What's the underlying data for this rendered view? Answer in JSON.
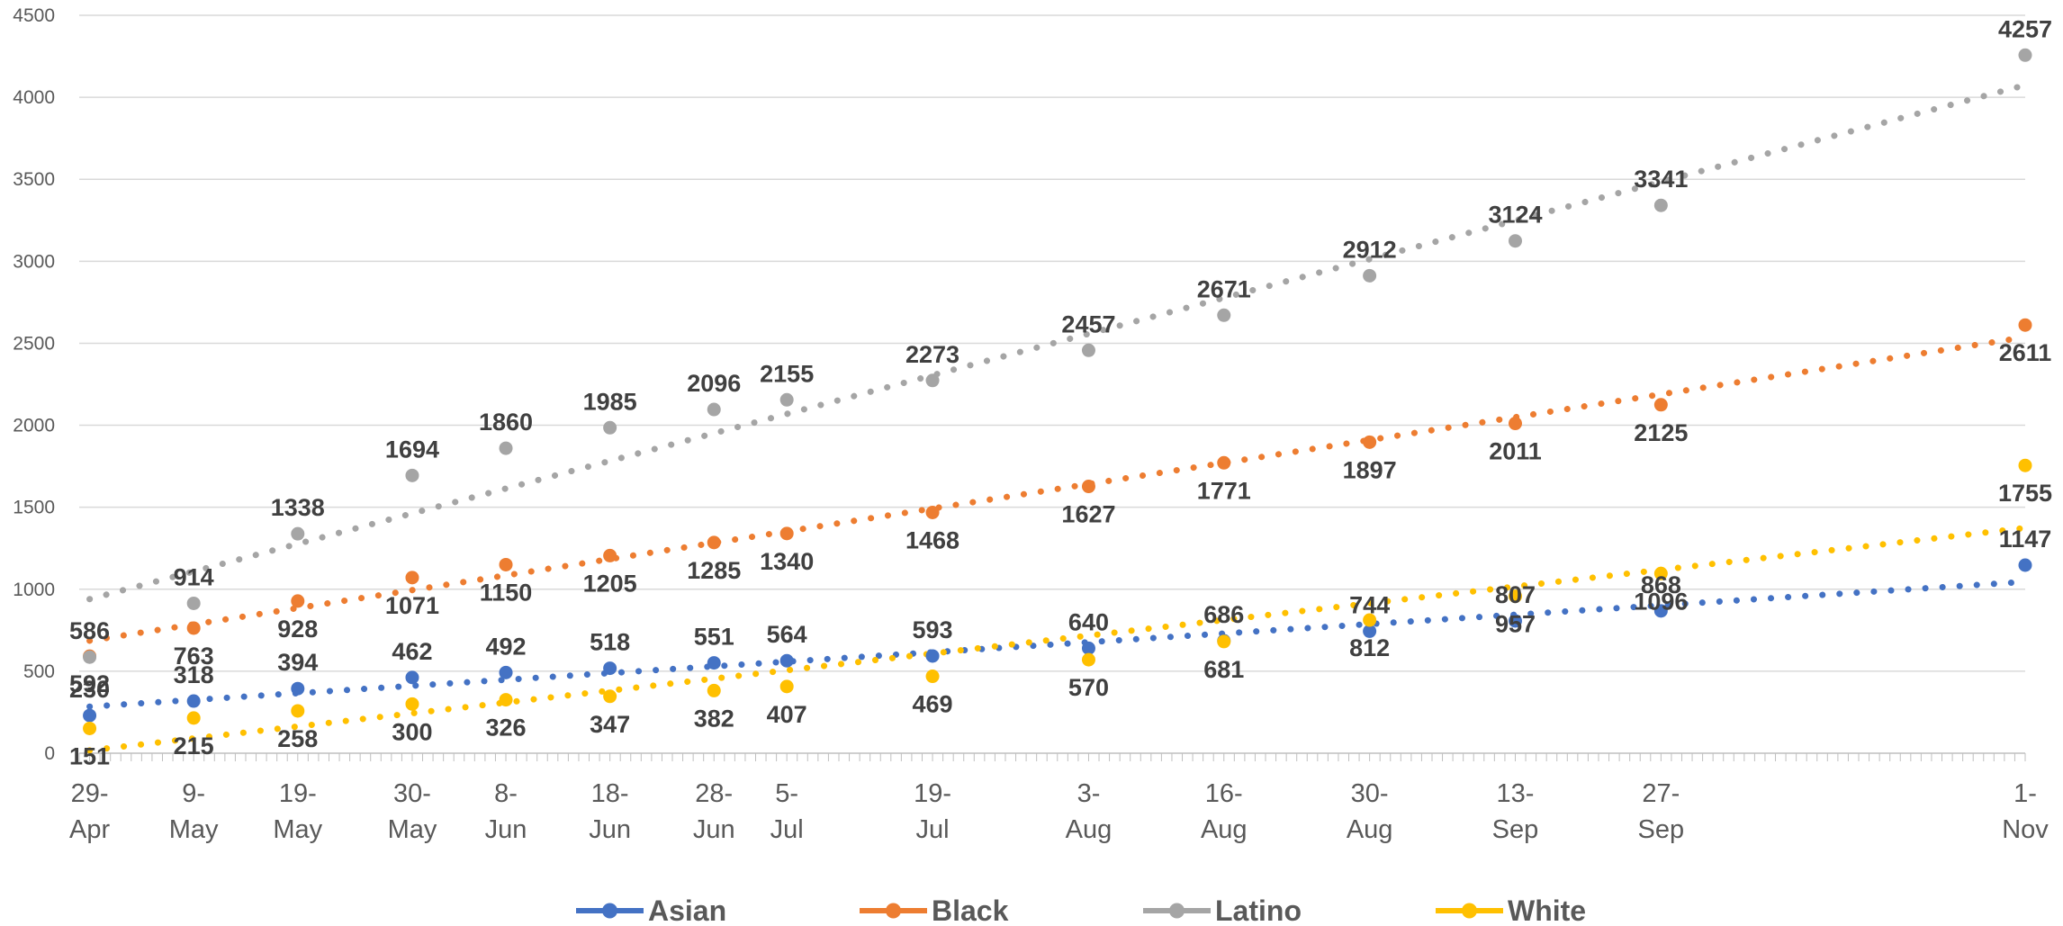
{
  "chart_data": {
    "type": "scatter",
    "title": "",
    "xlabel": "",
    "ylabel": "",
    "ylim": [
      0,
      4500
    ],
    "yticks": [
      0,
      500,
      1000,
      1500,
      2000,
      2500,
      3000,
      3500,
      4000,
      4500
    ],
    "grid": true,
    "legend_position": "bottom",
    "x_dates": [
      "2020-04-29",
      "2020-05-09",
      "2020-05-19",
      "2020-05-30",
      "2020-06-08",
      "2020-06-18",
      "2020-06-28",
      "2020-07-05",
      "2020-07-19",
      "2020-08-03",
      "2020-08-16",
      "2020-08-30",
      "2020-09-13",
      "2020-09-27",
      "2020-11-01"
    ],
    "xaxis_range": [
      "2020-04-28",
      "2020-11-01"
    ],
    "x_tick_labels": [
      {
        "date": "2020-04-29",
        "line1": "29-",
        "line2": "Apr"
      },
      {
        "date": "2020-05-09",
        "line1": "9-",
        "line2": "May"
      },
      {
        "date": "2020-05-19",
        "line1": "19-",
        "line2": "May"
      },
      {
        "date": "2020-05-30",
        "line1": "30-",
        "line2": "May"
      },
      {
        "date": "2020-06-08",
        "line1": "8-",
        "line2": "Jun"
      },
      {
        "date": "2020-06-18",
        "line1": "18-",
        "line2": "Jun"
      },
      {
        "date": "2020-06-28",
        "line1": "28-",
        "line2": "Jun"
      },
      {
        "date": "2020-07-05",
        "line1": "5-",
        "line2": "Jul"
      },
      {
        "date": "2020-07-19",
        "line1": "19-",
        "line2": "Jul"
      },
      {
        "date": "2020-08-03",
        "line1": "3-",
        "line2": "Aug"
      },
      {
        "date": "2020-08-16",
        "line1": "16-",
        "line2": "Aug"
      },
      {
        "date": "2020-08-30",
        "line1": "30-",
        "line2": "Aug"
      },
      {
        "date": "2020-09-13",
        "line1": "13-",
        "line2": "Sep"
      },
      {
        "date": "2020-09-27",
        "line1": "27-",
        "line2": "Sep"
      },
      {
        "date": "2020-11-01",
        "line1": "1-",
        "line2": "Nov"
      }
    ],
    "trendline": "linear, dotted",
    "series": [
      {
        "name": "Asian",
        "color": "#4472c4",
        "values": [
          230,
          318,
          394,
          462,
          492,
          518,
          551,
          564,
          593,
          640,
          686,
          744,
          807,
          868,
          1147
        ]
      },
      {
        "name": "Black",
        "color": "#ed7d31",
        "values": [
          592,
          763,
          928,
          1071,
          1150,
          1205,
          1285,
          1340,
          1468,
          1627,
          1771,
          1897,
          2011,
          2125,
          2611
        ]
      },
      {
        "name": "Latino",
        "color": "#a5a5a5",
        "values": [
          586,
          914,
          1338,
          1694,
          1860,
          1985,
          2096,
          2155,
          2273,
          2457,
          2671,
          2912,
          3124,
          3341,
          4257
        ]
      },
      {
        "name": "White",
        "color": "#ffc000",
        "values": [
          151,
          215,
          258,
          300,
          326,
          347,
          382,
          407,
          469,
          570,
          681,
          812,
          957,
          1096,
          1755
        ]
      }
    ]
  }
}
